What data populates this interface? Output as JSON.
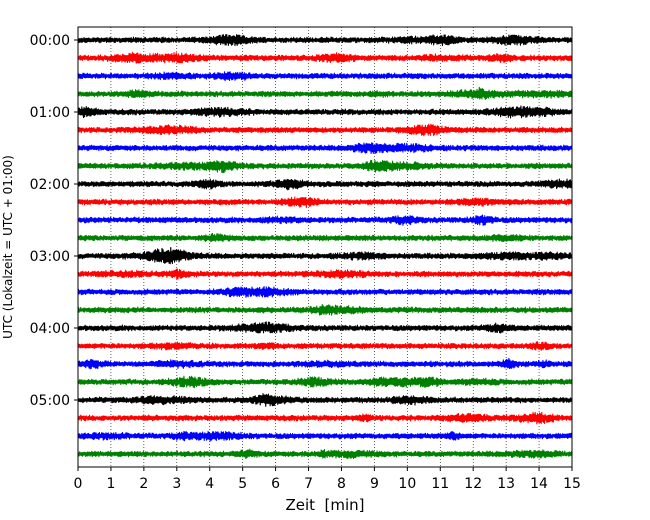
{
  "chart_data": {
    "type": "line",
    "subtype": "helicorder",
    "title": "",
    "xlabel": "Zeit  [min]",
    "ylabel": "UTC (Lokalzeit = UTC + 01:00)",
    "xlim": [
      0,
      15
    ],
    "x_ticks": [
      "0",
      "1",
      "2",
      "3",
      "4",
      "5",
      "6",
      "7",
      "8",
      "9",
      "10",
      "11",
      "12",
      "13",
      "14",
      "15"
    ],
    "y_tick_labels": [
      "00:00",
      "01:00",
      "02:00",
      "03:00",
      "04:00",
      "05:00"
    ],
    "trace_interval_minutes": 15,
    "grid": "vertical dotted at each minute",
    "colors": [
      "#000000",
      "#ff0000",
      "#0000ff",
      "#008000"
    ],
    "traces": [
      {
        "start": "00:00",
        "color": "#000000"
      },
      {
        "start": "00:15",
        "color": "#ff0000"
      },
      {
        "start": "00:30",
        "color": "#0000ff"
      },
      {
        "start": "00:45",
        "color": "#008000"
      },
      {
        "start": "01:00",
        "color": "#000000"
      },
      {
        "start": "01:15",
        "color": "#ff0000"
      },
      {
        "start": "01:30",
        "color": "#0000ff"
      },
      {
        "start": "01:45",
        "color": "#008000"
      },
      {
        "start": "02:00",
        "color": "#000000"
      },
      {
        "start": "02:15",
        "color": "#ff0000"
      },
      {
        "start": "02:30",
        "color": "#0000ff"
      },
      {
        "start": "02:45",
        "color": "#008000"
      },
      {
        "start": "03:00",
        "color": "#000000"
      },
      {
        "start": "03:15",
        "color": "#ff0000"
      },
      {
        "start": "03:30",
        "color": "#0000ff"
      },
      {
        "start": "03:45",
        "color": "#008000"
      },
      {
        "start": "04:00",
        "color": "#000000"
      },
      {
        "start": "04:15",
        "color": "#ff0000"
      },
      {
        "start": "04:30",
        "color": "#0000ff"
      },
      {
        "start": "04:45",
        "color": "#008000"
      },
      {
        "start": "05:00",
        "color": "#000000"
      },
      {
        "start": "05:15",
        "color": "#ff0000"
      },
      {
        "start": "05:30",
        "color": "#0000ff"
      },
      {
        "start": "05:45",
        "color": "#008000"
      }
    ]
  }
}
